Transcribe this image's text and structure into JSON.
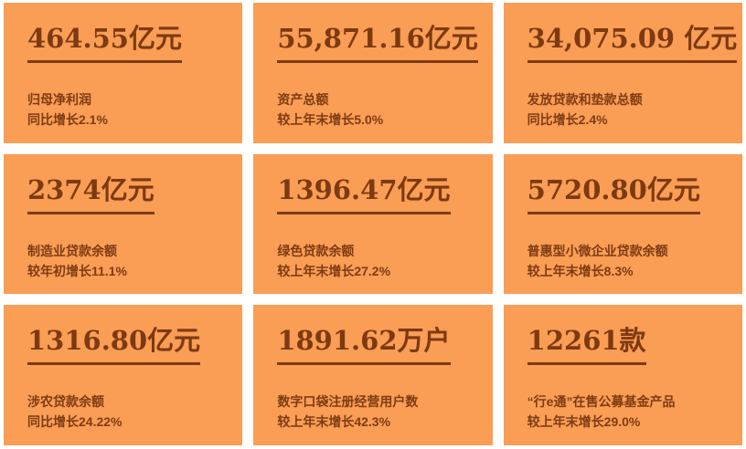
{
  "theme": {
    "card_background": "#FA9D55",
    "page_background": "#FFFFFF",
    "value_color": "#7D3A10",
    "label_color": "#7E3C13"
  },
  "cards": [
    {
      "value": "464.55亿元",
      "line1": "归母净利润",
      "line2": "同比增长2.1%"
    },
    {
      "value": "55,871.16亿元",
      "line1": "资产总额",
      "line2": "较上年末增长5.0%"
    },
    {
      "value": "34,075.09 亿元",
      "line1": "发放贷款和垫款总额",
      "line2": "同比增长2.4%"
    },
    {
      "value": "2374亿元",
      "line1": "制造业贷款余额",
      "line2": "较年初增长11.1%"
    },
    {
      "value": "1396.47亿元",
      "line1": "绿色贷款余额",
      "line2": "较上年末增长27.2%"
    },
    {
      "value": "5720.80亿元",
      "line1": "普惠型小微企业贷款余额",
      "line2": "较上年末增长8.3%"
    },
    {
      "value": "1316.80亿元",
      "line1": "涉农贷款余额",
      "line2": "同比增长24.22%"
    },
    {
      "value": "1891.62万户",
      "line1": "数字口袋注册经营用户数",
      "line2": "较上年末增长42.3%"
    },
    {
      "value": "12261款",
      "line1": "“行e通”在售公募基金产品",
      "line2": "较上年末增长29.0%"
    }
  ]
}
